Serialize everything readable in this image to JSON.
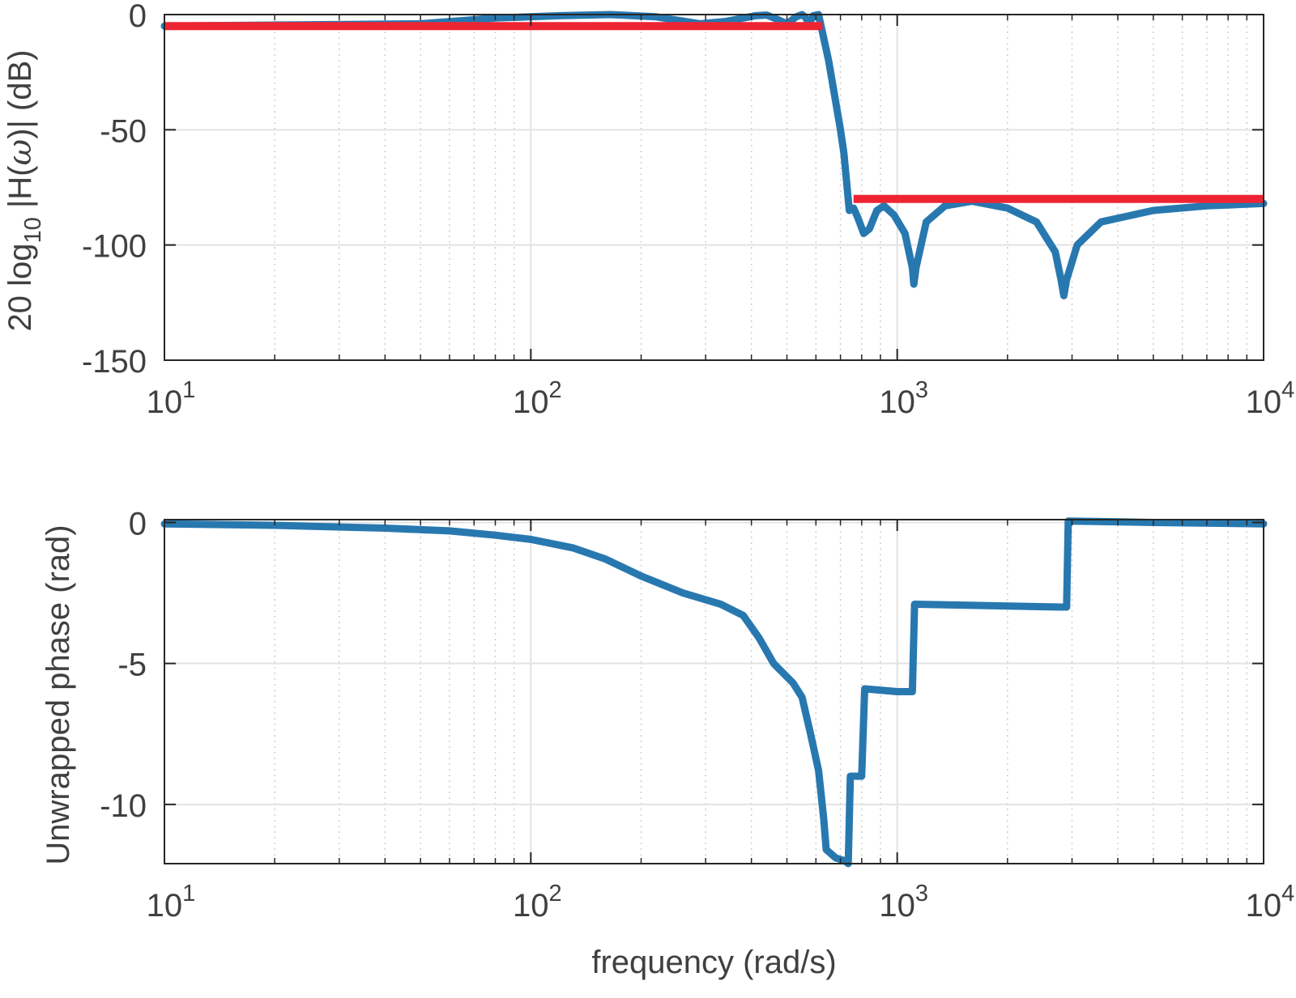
{
  "chart_data": [
    {
      "type": "line",
      "title": "",
      "xlabel": "",
      "ylabel": "20 log10 |H(ω)| (dB)",
      "ylabel_parts": {
        "prefix": "20 log",
        "sub": "10",
        "suffix": " |H(",
        "omega": "ω",
        "end": ")| (dB)"
      },
      "xscale": "log",
      "xlim": [
        10,
        10000
      ],
      "ylim": [
        -150,
        0
      ],
      "grid": true,
      "xticks": [
        {
          "base": "10",
          "exp": "1"
        },
        {
          "base": "10",
          "exp": "2"
        },
        {
          "base": "10",
          "exp": "3"
        },
        {
          "base": "10",
          "exp": "4"
        }
      ],
      "yticks": [
        {
          "value": 0,
          "label": "0"
        },
        {
          "value": -50,
          "label": "-50"
        },
        {
          "value": -100,
          "label": "-100"
        },
        {
          "value": -150,
          "label": "-150"
        }
      ],
      "series": [
        {
          "color": "#2878b0",
          "points": [
            [
              10,
              -5
            ],
            [
              50,
              -4
            ],
            [
              80,
              -1.5
            ],
            [
              120,
              -0.5
            ],
            [
              165,
              0
            ],
            [
              220,
              -1
            ],
            [
              290,
              -4
            ],
            [
              340,
              -3
            ],
            [
              410,
              -0.5
            ],
            [
              440,
              -0.2
            ],
            [
              470,
              -2
            ],
            [
              500,
              -4
            ],
            [
              530,
              -1
            ],
            [
              550,
              0
            ],
            [
              560,
              -1
            ],
            [
              575,
              -4
            ],
            [
              590,
              -0.5
            ],
            [
              610,
              0
            ],
            [
              650,
              -20
            ],
            [
              700,
              -50
            ],
            [
              715,
              -60
            ],
            [
              740,
              -85
            ],
            [
              760,
              -84
            ],
            [
              780,
              -88
            ],
            [
              810,
              -95
            ],
            [
              840,
              -93
            ],
            [
              880,
              -85
            ],
            [
              920,
              -83
            ],
            [
              980,
              -87
            ],
            [
              1050,
              -95
            ],
            [
              1100,
              -110
            ],
            [
              1110,
              -117
            ],
            [
              1125,
              -110
            ],
            [
              1200,
              -90
            ],
            [
              1350,
              -83
            ],
            [
              1600,
              -81
            ],
            [
              2000,
              -84
            ],
            [
              2400,
              -90
            ],
            [
              2700,
              -103
            ],
            [
              2800,
              -115
            ],
            [
              2850,
              -122
            ],
            [
              2900,
              -115
            ],
            [
              3100,
              -100
            ],
            [
              3600,
              -90
            ],
            [
              5000,
              -85
            ],
            [
              7000,
              -83
            ],
            [
              10000,
              -82
            ]
          ]
        },
        {
          "color": "#ee2433",
          "segments": [
            [
              [
                10,
                -5
              ],
              [
                625,
                -5
              ]
            ],
            [
              [
                760,
                -80
              ],
              [
                10000,
                -80
              ]
            ]
          ]
        }
      ]
    },
    {
      "type": "line",
      "title": "",
      "xlabel": "frequency (rad/s)",
      "ylabel": "Unwrapped phase (rad)",
      "xscale": "log",
      "xlim": [
        10,
        10000
      ],
      "ylim": [
        -12.1,
        0.1
      ],
      "grid": true,
      "xticks": [
        {
          "base": "10",
          "exp": "1"
        },
        {
          "base": "10",
          "exp": "2"
        },
        {
          "base": "10",
          "exp": "3"
        },
        {
          "base": "10",
          "exp": "4"
        }
      ],
      "yticks": [
        {
          "value": 0,
          "label": "0"
        },
        {
          "value": -5,
          "label": "-5"
        },
        {
          "value": -10,
          "label": "-10"
        }
      ],
      "series": [
        {
          "color": "#2878b0",
          "points": [
            [
              10,
              -0.05
            ],
            [
              20,
              -0.1
            ],
            [
              40,
              -0.2
            ],
            [
              60,
              -0.3
            ],
            [
              80,
              -0.45
            ],
            [
              100,
              -0.6
            ],
            [
              130,
              -0.9
            ],
            [
              160,
              -1.3
            ],
            [
              200,
              -1.9
            ],
            [
              260,
              -2.5
            ],
            [
              330,
              -2.9
            ],
            [
              380,
              -3.3
            ],
            [
              420,
              -4.1
            ],
            [
              460,
              -5.0
            ],
            [
              520,
              -5.7
            ],
            [
              550,
              -6.2
            ],
            [
              580,
              -7.5
            ],
            [
              610,
              -8.8
            ],
            [
              630,
              -10.5
            ],
            [
              640,
              -11.6
            ],
            [
              680,
              -11.9
            ],
            [
              720,
              -12.0
            ],
            [
              735,
              -12.1
            ],
            [
              745,
              -9.0
            ],
            [
              800,
              -9.0
            ],
            [
              815,
              -5.9
            ],
            [
              1000,
              -6.0
            ],
            [
              1100,
              -6.0
            ],
            [
              1115,
              -2.9
            ],
            [
              2800,
              -3.0
            ],
            [
              2900,
              -3.0
            ],
            [
              2930,
              0.05
            ],
            [
              5000,
              0.0
            ],
            [
              10000,
              -0.05
            ]
          ]
        }
      ]
    }
  ]
}
